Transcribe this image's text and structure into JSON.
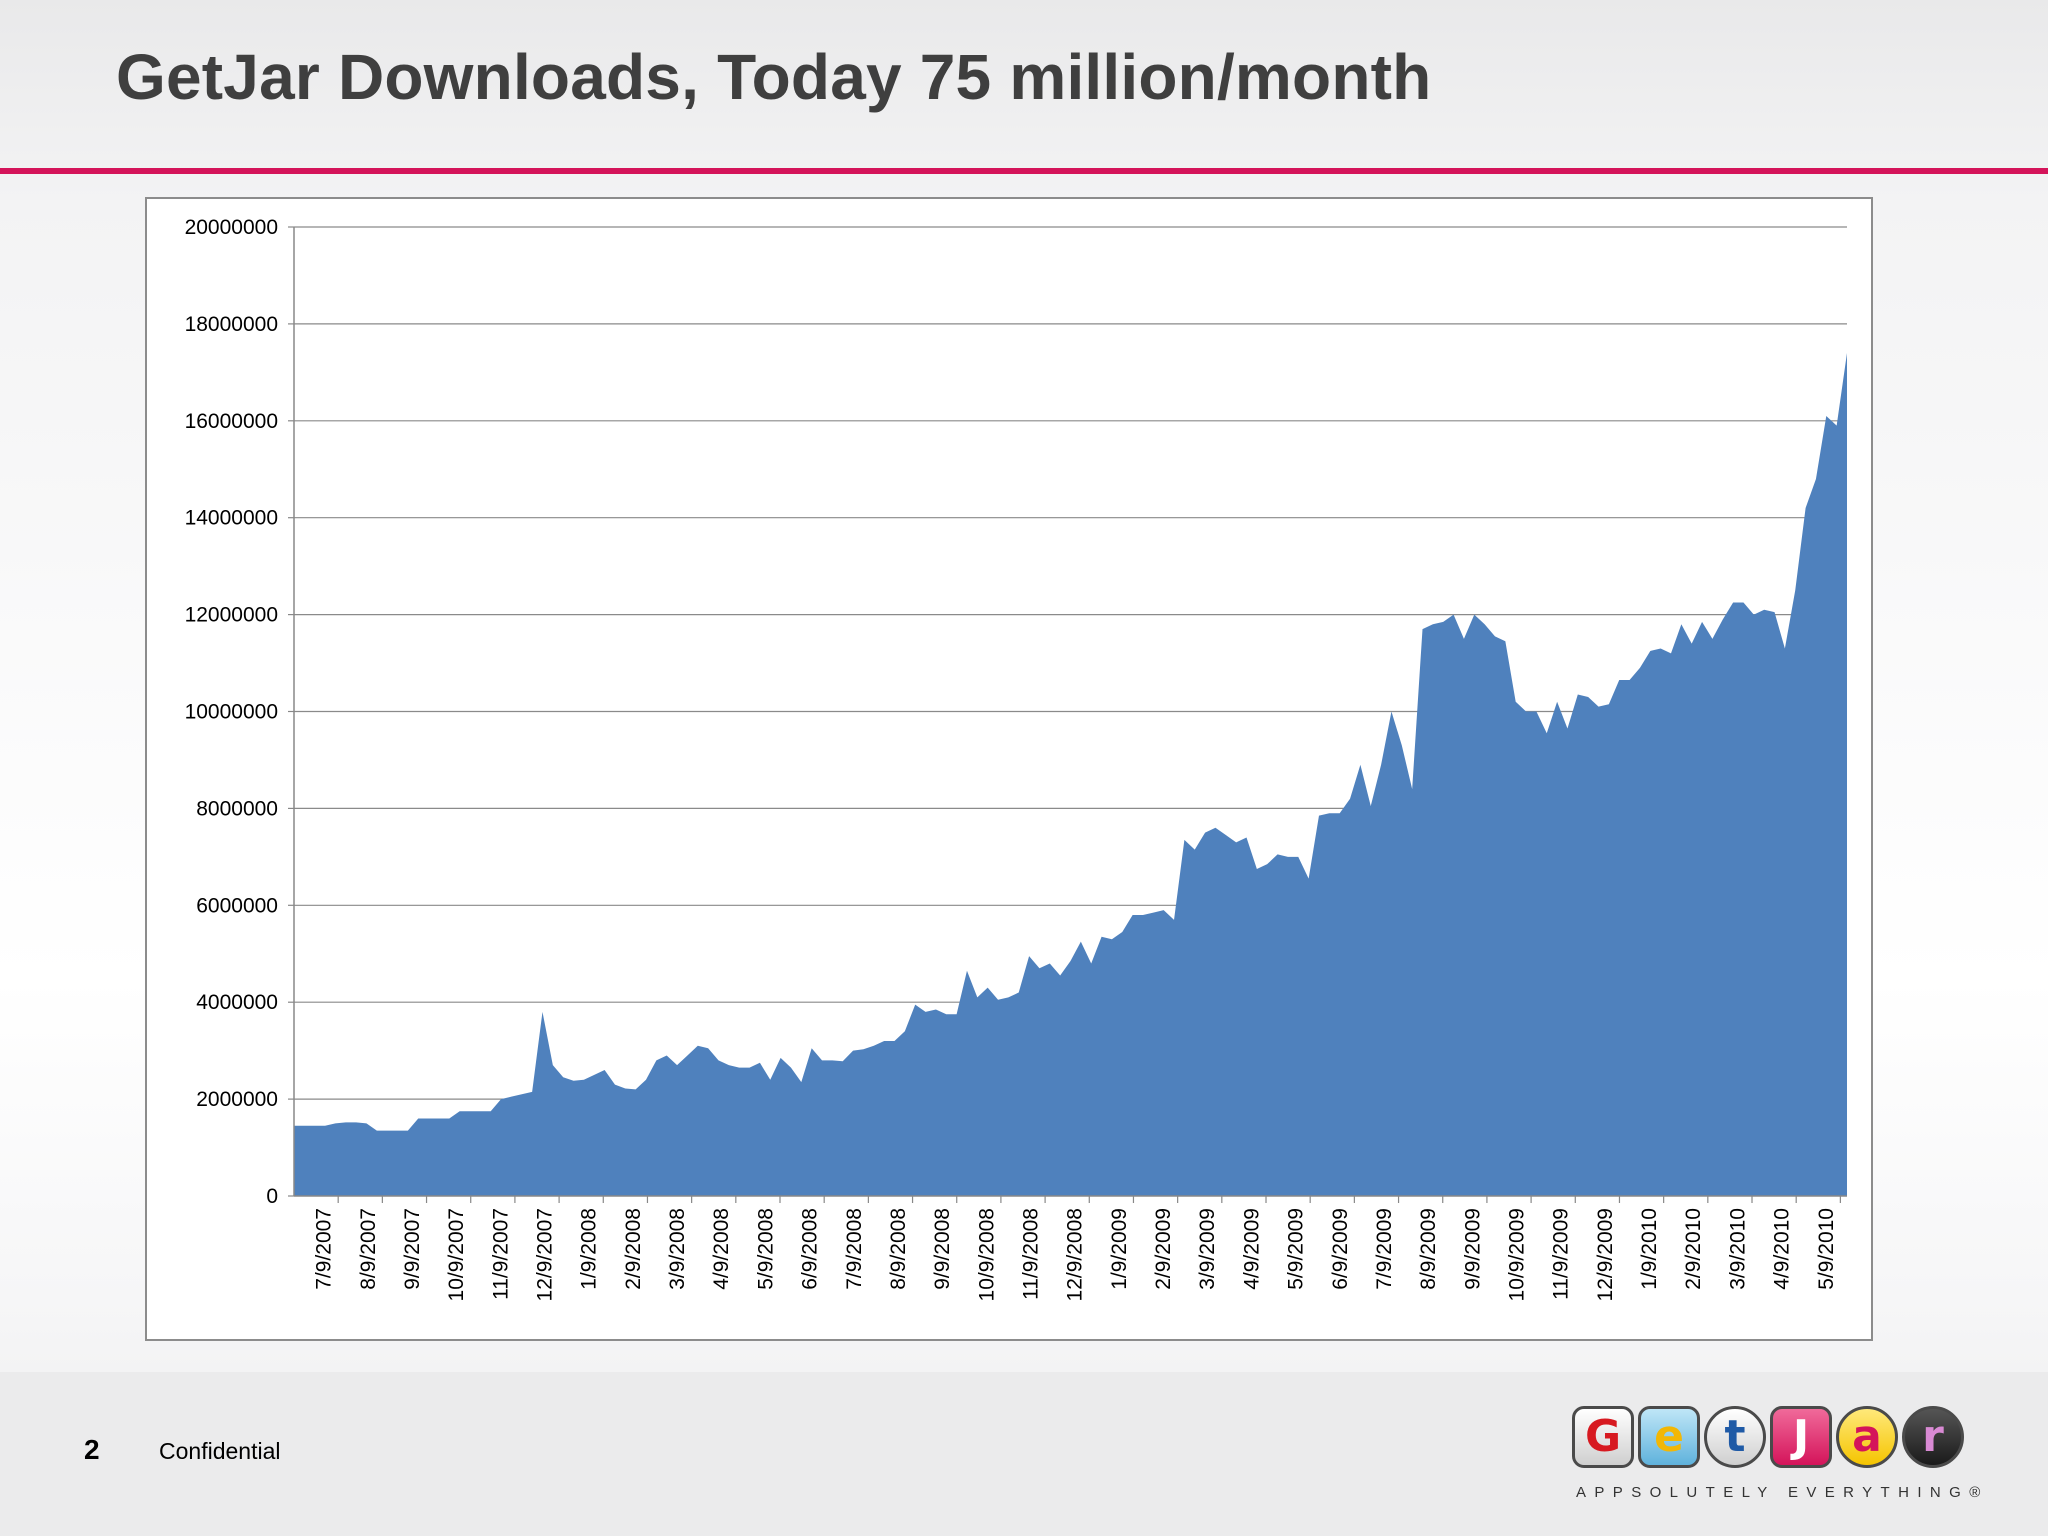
{
  "slide": {
    "title": "GetJar Downloads, Today 75 million/month",
    "page_number": "2",
    "footer_text": "Confidential",
    "accent_color": "#d4145a"
  },
  "logo": {
    "letters": [
      "G",
      "e",
      "t",
      "J",
      "a",
      "r"
    ],
    "tagline": "APPSOLUTELY EVERYTHING®"
  },
  "chart_data": {
    "type": "area",
    "color": "#4f81bd",
    "grid": true,
    "legend": "none",
    "ylim": [
      0,
      20000000
    ],
    "yticks": [
      0,
      2000000,
      4000000,
      6000000,
      8000000,
      10000000,
      12000000,
      14000000,
      16000000,
      18000000,
      20000000
    ],
    "xticks": [
      "7/9/2007",
      "8/9/2007",
      "9/9/2007",
      "10/9/2007",
      "11/9/2007",
      "12/9/2007",
      "1/9/2008",
      "2/9/2008",
      "3/9/2008",
      "4/9/2008",
      "5/9/2008",
      "6/9/2008",
      "7/9/2008",
      "8/9/2008",
      "9/9/2008",
      "10/9/2008",
      "11/9/2008",
      "12/9/2008",
      "1/9/2009",
      "2/9/2009",
      "3/9/2009",
      "4/9/2009",
      "5/9/2009",
      "6/9/2009",
      "7/9/2009",
      "8/9/2009",
      "9/9/2009",
      "10/9/2009",
      "11/9/2009",
      "12/9/2009",
      "1/9/2010",
      "2/9/2010",
      "3/9/2010",
      "4/9/2010",
      "5/9/2010"
    ],
    "x_end": "6/9/2010",
    "series": [
      {
        "values": [
          1450000,
          1450000,
          1450000,
          1450000,
          1500000,
          1520000,
          1520000,
          1500000,
          1350000,
          1350000,
          1350000,
          1350000,
          1600000,
          1600000,
          1600000,
          1600000,
          1750000,
          1750000,
          1750000,
          1750000,
          2000000,
          2050000,
          2100000,
          2150000,
          3800000,
          2700000,
          2450000,
          2380000,
          2400000,
          2500000,
          2600000,
          2300000,
          2220000,
          2200000,
          2400000,
          2800000,
          2900000,
          2700000,
          2900000,
          3100000,
          3050000,
          2800000,
          2700000,
          2650000,
          2650000,
          2750000,
          2400000,
          2850000,
          2650000,
          2350000,
          3050000,
          2800000,
          2800000,
          2780000,
          3000000,
          3030000,
          3100000,
          3200000,
          3200000,
          3400000,
          3950000,
          3800000,
          3850000,
          3750000,
          3750000,
          4650000,
          4100000,
          4300000,
          4050000,
          4100000,
          4200000,
          4950000,
          4700000,
          4800000,
          4550000,
          4850000,
          5250000,
          4800000,
          5350000,
          5300000,
          5450000,
          5800000,
          5800000,
          5850000,
          5900000,
          5700000,
          7350000,
          7150000,
          7500000,
          7600000,
          7450000,
          7300000,
          7400000,
          6750000,
          6850000,
          7050000,
          7000000,
          7000000,
          6550000,
          7850000,
          7900000,
          7900000,
          8200000,
          8900000,
          8050000,
          8900000,
          10000000,
          9300000,
          8400000,
          11700000,
          11800000,
          11850000,
          12000000,
          11500000,
          12000000,
          11800000,
          11550000,
          11450000,
          10200000,
          10000000,
          10000000,
          9550000,
          10200000,
          9650000,
          10350000,
          10300000,
          10100000,
          10150000,
          10650000,
          10650000,
          10900000,
          11250000,
          11300000,
          11200000,
          11800000,
          11400000,
          11850000,
          11500000,
          11900000,
          12250000,
          12250000,
          12000000,
          12100000,
          12050000,
          11300000,
          12500000,
          14200000,
          14800000,
          16100000,
          15900000,
          17400000
        ]
      }
    ]
  }
}
